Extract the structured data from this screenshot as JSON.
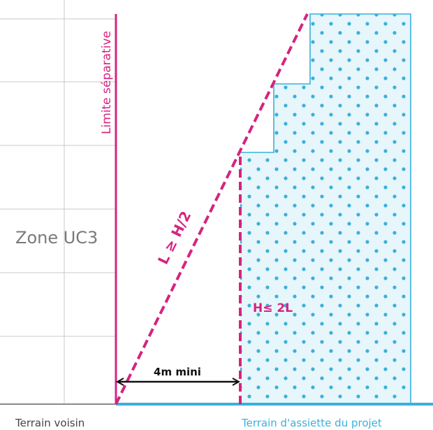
{
  "labels": {
    "zone": "Zone UC3",
    "separation_limit": "Limite séparative",
    "slope_rule": "L ≥ H/2",
    "height_rule": "H≤ 2L",
    "min_distance": "4m mini",
    "neighbor_land": "Terrain voisin",
    "project_land": "Terrain d'assiette du projet"
  },
  "colors": {
    "magenta": "#d6237f",
    "cyan": "#3ab0dc",
    "building_fill": "#e6f6fb",
    "dots": "#3ab0dc",
    "grid": "#c8c8c8",
    "ground": "#8a8a8a",
    "arrow": "#111111"
  }
}
